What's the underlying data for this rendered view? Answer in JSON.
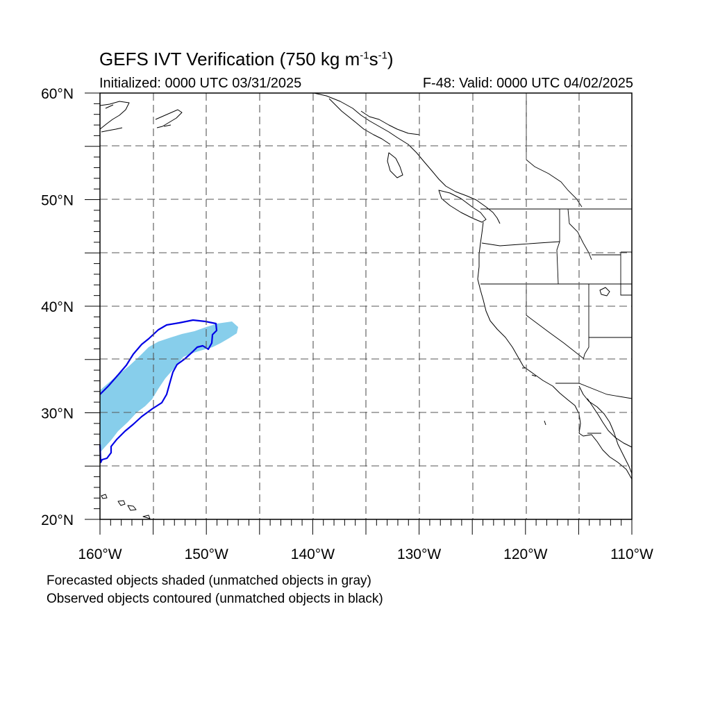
{
  "title": {
    "main": "GEFS IVT Verification (750 kg m",
    "sup1": "-1",
    "mid": "s",
    "sup2": "-1",
    "end": ")"
  },
  "subtitle_left": "Initialized: 0000 UTC 03/31/2025",
  "subtitle_right": "F-48: Valid: 0000 UTC 04/02/2025",
  "lat_labels": [
    {
      "value": 60,
      "text": "60°N"
    },
    {
      "value": 50,
      "text": "50°N"
    },
    {
      "value": 40,
      "text": "40°N"
    },
    {
      "value": 30,
      "text": "30°N"
    },
    {
      "value": 20,
      "text": "20°N"
    }
  ],
  "lon_labels": [
    {
      "value": -160,
      "text": "160°W"
    },
    {
      "value": -150,
      "text": "150°W"
    },
    {
      "value": -140,
      "text": "140°W"
    },
    {
      "value": -130,
      "text": "130°W"
    },
    {
      "value": -120,
      "text": "120°W"
    },
    {
      "value": -110,
      "text": "110°W"
    }
  ],
  "map_extent": {
    "lon": [
      -160,
      -110
    ],
    "lat": [
      20,
      60
    ]
  },
  "footnote_1": "Forecasted objects shaded (unmatched objects in gray)",
  "footnote_2": "Observed objects contoured (unmatched objects in black)",
  "colors": {
    "forecast_fill": "#87ceeb",
    "observed_contour": "#0000e6",
    "coastline": "#000000",
    "grid": "#555555"
  }
}
